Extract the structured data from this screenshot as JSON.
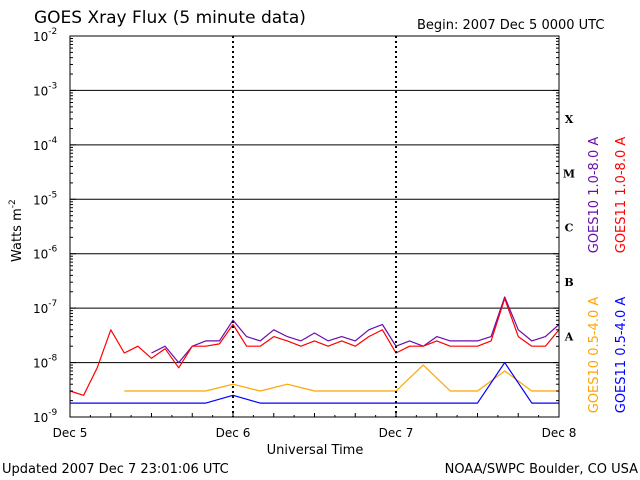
{
  "chart_data": {
    "type": "line",
    "title": "GOES Xray Flux (5 minute data)",
    "begin_label": "Begin:  2007 Dec 5 0000 UTC",
    "xlabel": "Universal Time",
    "ylabel": "Watts m",
    "ylabel_superscript": "-2",
    "y_scale": "log",
    "ylim": [
      1e-09,
      0.01
    ],
    "xlim": [
      "2007-12-05T00:00",
      "2007-12-08T00:00"
    ],
    "x_ticks": [
      {
        "value": "2007-12-05T00:00",
        "label": "Dec 5"
      },
      {
        "value": "2007-12-06T00:00",
        "label": "Dec 6"
      },
      {
        "value": "2007-12-07T00:00",
        "label": "Dec 7"
      },
      {
        "value": "2007-12-08T00:00",
        "label": "Dec 8"
      }
    ],
    "y_ticks": [
      {
        "value": 0.01,
        "base": "10",
        "exp": "-2"
      },
      {
        "value": 0.001,
        "base": "10",
        "exp": "-3"
      },
      {
        "value": 0.0001,
        "base": "10",
        "exp": "-4"
      },
      {
        "value": 1e-05,
        "base": "10",
        "exp": "-5"
      },
      {
        "value": 1e-06,
        "base": "10",
        "exp": "-6"
      },
      {
        "value": 1e-07,
        "base": "10",
        "exp": "-7"
      },
      {
        "value": 1e-08,
        "base": "10",
        "exp": "-8"
      },
      {
        "value": 1e-09,
        "base": "10",
        "exp": "-9"
      }
    ],
    "gridlines": [
      0.001,
      0.0001,
      1e-05,
      1e-06,
      1e-07,
      1e-08
    ],
    "flare_classes": [
      {
        "label": "X",
        "value": 0.0003
      },
      {
        "label": "M",
        "value": 3e-05
      },
      {
        "label": "C",
        "value": 3e-06
      },
      {
        "label": "B",
        "value": 3e-07
      },
      {
        "label": "A",
        "value": 3e-08
      }
    ],
    "series": [
      {
        "name": "GOES10 1.0-8.0 A",
        "color": "#6a0dad",
        "x": [
          "2007-12-05T12:00",
          "2007-12-05T14:00",
          "2007-12-05T16:00",
          "2007-12-05T18:00",
          "2007-12-05T20:00",
          "2007-12-05T22:00",
          "2007-12-06T00:00",
          "2007-12-06T02:00",
          "2007-12-06T04:00",
          "2007-12-06T06:00",
          "2007-12-06T08:00",
          "2007-12-06T10:00",
          "2007-12-06T12:00",
          "2007-12-06T14:00",
          "2007-12-06T16:00",
          "2007-12-06T18:00",
          "2007-12-06T20:00",
          "2007-12-06T22:00",
          "2007-12-07T00:00",
          "2007-12-07T02:00",
          "2007-12-07T04:00",
          "2007-12-07T06:00",
          "2007-12-07T08:00",
          "2007-12-07T10:00",
          "2007-12-07T12:00",
          "2007-12-07T14:00",
          "2007-12-07T16:00",
          "2007-12-07T18:00",
          "2007-12-07T20:00",
          "2007-12-07T22:00",
          "2007-12-08T00:00"
        ],
        "values": [
          1.5e-08,
          2e-08,
          1e-08,
          2e-08,
          2.5e-08,
          2.5e-08,
          6e-08,
          3e-08,
          2.5e-08,
          4e-08,
          3e-08,
          2.5e-08,
          3.5e-08,
          2.5e-08,
          3e-08,
          2.5e-08,
          4e-08,
          5e-08,
          2e-08,
          2.5e-08,
          2e-08,
          3e-08,
          2.5e-08,
          2.5e-08,
          2.5e-08,
          3e-08,
          1.6e-07,
          4e-08,
          2.5e-08,
          3e-08,
          5e-08
        ]
      },
      {
        "name": "GOES11 1.0-8.0 A",
        "color": "#ff0000",
        "x": [
          "2007-12-05T00:00",
          "2007-12-05T02:00",
          "2007-12-05T04:00",
          "2007-12-05T06:00",
          "2007-12-05T08:00",
          "2007-12-05T10:00",
          "2007-12-05T12:00",
          "2007-12-05T14:00",
          "2007-12-05T16:00",
          "2007-12-05T18:00",
          "2007-12-05T20:00",
          "2007-12-05T22:00",
          "2007-12-06T00:00",
          "2007-12-06T02:00",
          "2007-12-06T04:00",
          "2007-12-06T06:00",
          "2007-12-06T08:00",
          "2007-12-06T10:00",
          "2007-12-06T12:00",
          "2007-12-06T14:00",
          "2007-12-06T16:00",
          "2007-12-06T18:00",
          "2007-12-06T20:00",
          "2007-12-06T22:00",
          "2007-12-07T00:00",
          "2007-12-07T02:00",
          "2007-12-07T04:00",
          "2007-12-07T06:00",
          "2007-12-07T08:00",
          "2007-12-07T10:00",
          "2007-12-07T12:00",
          "2007-12-07T14:00",
          "2007-12-07T16:00",
          "2007-12-07T18:00",
          "2007-12-07T20:00",
          "2007-12-07T22:00",
          "2007-12-08T00:00"
        ],
        "values": [
          3e-09,
          2.5e-09,
          8e-09,
          4e-08,
          1.5e-08,
          2e-08,
          1.2e-08,
          1.8e-08,
          8e-09,
          2e-08,
          2e-08,
          2.2e-08,
          5e-08,
          2e-08,
          2e-08,
          3e-08,
          2.5e-08,
          2e-08,
          2.5e-08,
          2e-08,
          2.5e-08,
          2e-08,
          3e-08,
          4e-08,
          1.5e-08,
          2e-08,
          2e-08,
          2.5e-08,
          2e-08,
          2e-08,
          2e-08,
          2.5e-08,
          1.5e-07,
          3e-08,
          2e-08,
          2e-08,
          4e-08
        ]
      },
      {
        "name": "GOES10 0.5-4.0 A",
        "color": "#ffa500",
        "x": [
          "2007-12-05T08:00",
          "2007-12-05T12:00",
          "2007-12-05T16:00",
          "2007-12-05T20:00",
          "2007-12-06T00:00",
          "2007-12-06T04:00",
          "2007-12-06T08:00",
          "2007-12-06T12:00",
          "2007-12-06T16:00",
          "2007-12-06T20:00",
          "2007-12-07T00:00",
          "2007-12-07T04:00",
          "2007-12-07T08:00",
          "2007-12-07T12:00",
          "2007-12-07T16:00",
          "2007-12-07T20:00",
          "2007-12-08T00:00"
        ],
        "values": [
          3e-09,
          3e-09,
          3e-09,
          3e-09,
          4e-09,
          3e-09,
          4e-09,
          3e-09,
          3e-09,
          3e-09,
          3e-09,
          9e-09,
          3e-09,
          3e-09,
          7e-09,
          3e-09,
          3e-09
        ]
      },
      {
        "name": "GOES11 0.5-4.0 A",
        "color": "#0000ff",
        "x": [
          "2007-12-05T00:00",
          "2007-12-05T04:00",
          "2007-12-05T08:00",
          "2007-12-05T12:00",
          "2007-12-05T16:00",
          "2007-12-05T20:00",
          "2007-12-06T00:00",
          "2007-12-06T04:00",
          "2007-12-06T08:00",
          "2007-12-06T12:00",
          "2007-12-06T16:00",
          "2007-12-06T20:00",
          "2007-12-07T00:00",
          "2007-12-07T04:00",
          "2007-12-07T08:00",
          "2007-12-07T12:00",
          "2007-12-07T16:00",
          "2007-12-07T20:00",
          "2007-12-08T00:00"
        ],
        "values": [
          1.8e-09,
          1.8e-09,
          1.8e-09,
          1.8e-09,
          1.8e-09,
          1.8e-09,
          2.5e-09,
          1.8e-09,
          1.8e-09,
          1.8e-09,
          1.8e-09,
          1.8e-09,
          1.8e-09,
          1.8e-09,
          1.8e-09,
          1.8e-09,
          1e-08,
          1.8e-09,
          1.8e-09
        ]
      }
    ]
  },
  "footer": {
    "updated": "Updated 2007 Dec  7 23:01:06 UTC",
    "source": "NOAA/SWPC Boulder, CO USA"
  }
}
